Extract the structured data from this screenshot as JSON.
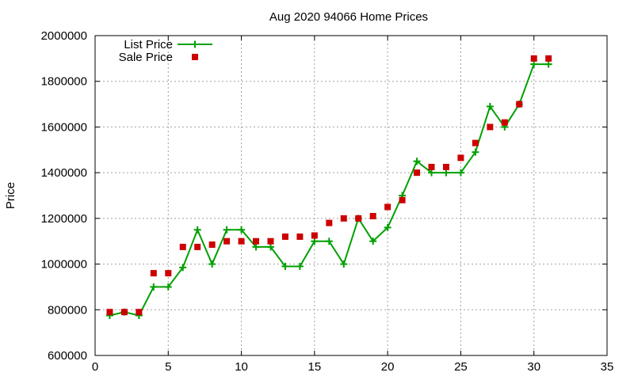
{
  "chart_data": {
    "type": "line",
    "title": "Aug 2020 94066 Home Prices",
    "xlabel": "",
    "ylabel": "Price",
    "xlim": [
      0,
      35
    ],
    "ylim": [
      600000,
      2000000
    ],
    "xticks": [
      0,
      5,
      10,
      15,
      20,
      25,
      30,
      35
    ],
    "yticks": [
      600000,
      800000,
      1000000,
      1200000,
      1400000,
      1600000,
      1800000,
      2000000
    ],
    "xtick_labels": [
      "0",
      "5",
      "10",
      "15",
      "20",
      "25",
      "30",
      "35"
    ],
    "ytick_labels": [
      "600000",
      "800000",
      "1000000",
      "1200000",
      "1400000",
      "1600000",
      "1800000",
      "2000000"
    ],
    "grid": true,
    "legend_position": "top-left",
    "series": [
      {
        "name": "List Price",
        "style": "line-plus",
        "color": "#00a000",
        "x": [
          1,
          2,
          3,
          4,
          5,
          6,
          7,
          8,
          9,
          10,
          11,
          12,
          13,
          14,
          15,
          16,
          17,
          18,
          19,
          20,
          21,
          22,
          23,
          24,
          25,
          26,
          27,
          28,
          29,
          30,
          31
        ],
        "y": [
          775000,
          790000,
          775000,
          900000,
          900000,
          985000,
          1150000,
          1000000,
          1150000,
          1150000,
          1075000,
          1075000,
          990000,
          990000,
          1100000,
          1100000,
          1000000,
          1200000,
          1100000,
          1160000,
          1300000,
          1450000,
          1400000,
          1400000,
          1400000,
          1490000,
          1690000,
          1600000,
          1700000,
          1875000,
          1875000
        ]
      },
      {
        "name": "Sale Price",
        "style": "square-markers",
        "color": "#cc0000",
        "x": [
          1,
          2,
          3,
          4,
          5,
          6,
          7,
          8,
          9,
          10,
          11,
          12,
          13,
          14,
          15,
          16,
          17,
          18,
          19,
          20,
          21,
          22,
          23,
          24,
          25,
          26,
          27,
          28,
          29,
          30,
          31
        ],
        "y": [
          790000,
          790000,
          790000,
          960000,
          960000,
          1075000,
          1075000,
          1085000,
          1100000,
          1100000,
          1100000,
          1100000,
          1120000,
          1120000,
          1125000,
          1180000,
          1200000,
          1200000,
          1210000,
          1250000,
          1280000,
          1400000,
          1425000,
          1425000,
          1465000,
          1530000,
          1600000,
          1620000,
          1700000,
          1900000,
          1900000
        ]
      }
    ]
  }
}
